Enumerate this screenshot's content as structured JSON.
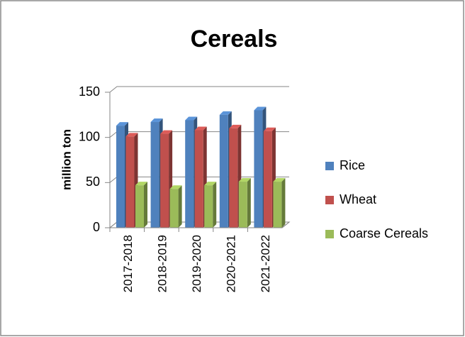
{
  "chart_data": {
    "type": "bar",
    "title": "Cereals",
    "y_label": "million ton",
    "categories": [
      "2017-2018",
      "2018-2019",
      "2019-2020",
      "2020-2021",
      "2021-2022"
    ],
    "series": [
      {
        "name": "Rice",
        "color": "#4f81bd",
        "values": [
          113,
          117,
          119,
          125,
          130
        ]
      },
      {
        "name": "Wheat",
        "color": "#c0504d",
        "values": [
          101,
          104,
          108,
          110,
          107
        ]
      },
      {
        "name": "Coarse Cereals",
        "color": "#9bbb59",
        "values": [
          47,
          43,
          47,
          51,
          51
        ]
      }
    ],
    "ylim": [
      0,
      150
    ],
    "yticks": [
      0,
      50,
      100,
      150
    ],
    "grid": true,
    "legend": "right"
  }
}
